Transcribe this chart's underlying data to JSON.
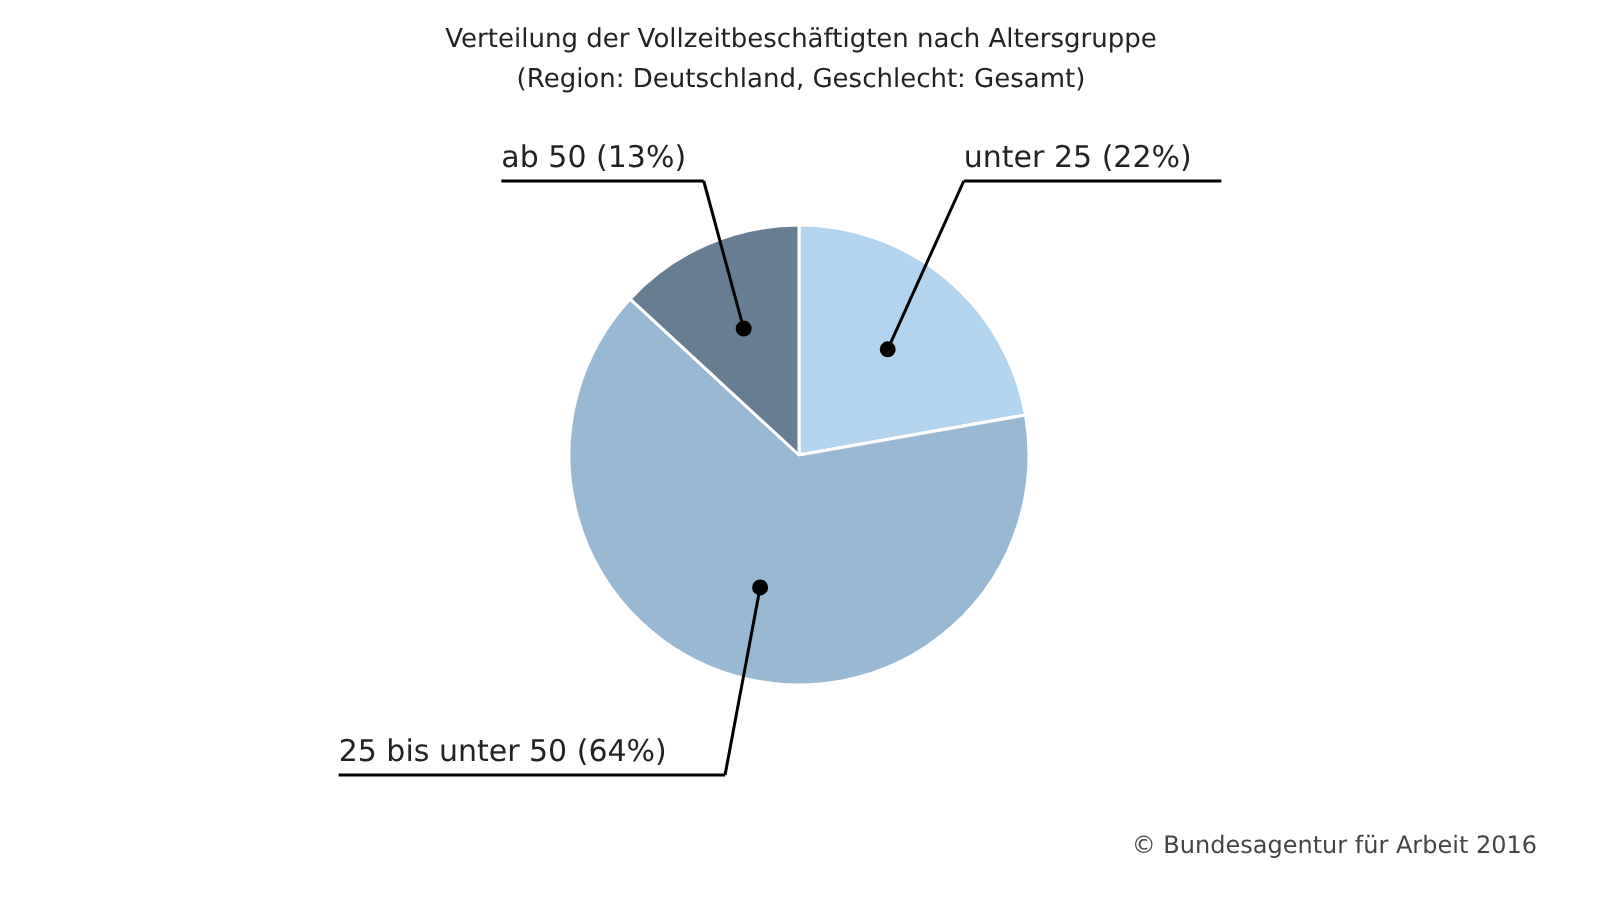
{
  "chart_data": {
    "type": "pie",
    "title": "Verteilung der Vollzeitbeschäftigten nach Altersgruppe",
    "subtitle": "(Region: Deutschland, Geschlecht: Gesamt)",
    "categories": [
      "unter 25",
      "25 bis unter 50",
      "ab 50"
    ],
    "values": [
      22,
      64,
      13
    ],
    "colors": [
      "#b3d4ee",
      "#98b8d3",
      "#667d92"
    ],
    "value_labels": [
      "(22%)",
      "(64%)",
      "(13%)"
    ],
    "annotations": [
      "© Bundesagentur für Arbeit 2016"
    ]
  }
}
